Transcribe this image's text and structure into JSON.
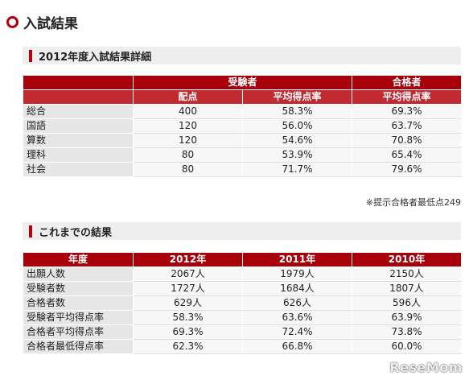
{
  "page_title": "入試結果",
  "section1": {
    "title": "2012年度入試結果詳細",
    "groups": [
      "受験者",
      "合格者"
    ],
    "columns": [
      "配点",
      "平均得点率",
      "平均得点率"
    ],
    "rows": [
      {
        "subject": "総合",
        "points": "400",
        "examinee_avg": "58.3%",
        "passer_avg": "69.3%"
      },
      {
        "subject": "国語",
        "points": "120",
        "examinee_avg": "56.0%",
        "passer_avg": "63.7%"
      },
      {
        "subject": "算数",
        "points": "120",
        "examinee_avg": "54.6%",
        "passer_avg": "70.8%"
      },
      {
        "subject": "理科",
        "points": "80",
        "examinee_avg": "53.9%",
        "passer_avg": "65.4%"
      },
      {
        "subject": "社会",
        "points": "80",
        "examinee_avg": "71.7%",
        "passer_avg": "79.6%"
      }
    ],
    "note": "※提示合格者最低点249"
  },
  "section2": {
    "title": "これまでの結果",
    "headers": [
      "年度",
      "2012年",
      "2011年",
      "2010年"
    ],
    "rows": [
      {
        "label": "出願人数",
        "values": [
          "2067人",
          "1979人",
          "2150人"
        ]
      },
      {
        "label": "受験者数",
        "values": [
          "1727人",
          "1684人",
          "1807人"
        ]
      },
      {
        "label": "合格者数",
        "values": [
          "629人",
          "626人",
          "596人"
        ]
      },
      {
        "label": "受験者平均得点率",
        "values": [
          "58.3%",
          "63.6%",
          "63.9%"
        ]
      },
      {
        "label": "合格者平均得点率",
        "values": [
          "69.3%",
          "72.4%",
          "73.8%"
        ]
      },
      {
        "label": "合格者最低得点率",
        "values": [
          "62.3%",
          "66.8%",
          "60.0%"
        ]
      }
    ]
  },
  "watermark": "ReseMom",
  "colors": {
    "accent": "#b5000b",
    "header": "#a8000b"
  }
}
